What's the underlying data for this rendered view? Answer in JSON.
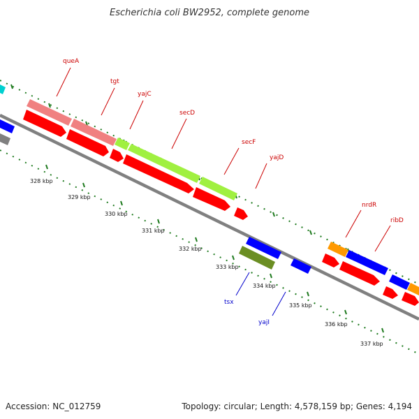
{
  "title": "Escherichia coli BW2952, complete genome",
  "footer": {
    "accession": "Accession: NC_012759",
    "summary": "Topology: circular; Length: 4,578,159 bp; Genes: 4,194"
  },
  "colors": {
    "background": "#ffffff",
    "backbone": "#808080",
    "tick": "#1e7a1e",
    "cds": "#ff0000",
    "plus_label": "#cc0000",
    "minus_label": "#0000cc",
    "queA": "#f08080",
    "tgt": "#f08080",
    "yajC": "#a0f040",
    "secD": "#a0f040",
    "secF": "#a0f040",
    "nrdR": "#ff9900",
    "ribD": "#0000ff",
    "tsx": "#6b8e23",
    "yajI": "#0000ff",
    "cyan_partial": "#00d0d0",
    "grey_partial": "#808080"
  },
  "kbp_labels": [
    "328 kbp",
    "329 kbp",
    "330 kbp",
    "331 kbp",
    "332 kbp",
    "333 kbp",
    "334 kbp",
    "335 kbp",
    "336 kbp",
    "337 kbp"
  ],
  "genes": {
    "queA": "queA",
    "tgt": "tgt",
    "yajC": "yajC",
    "secD": "secD",
    "secF": "secF",
    "yajD": "yajD",
    "nrdR": "nrdR",
    "ribD": "ribD",
    "tsx": "tsx",
    "yajI": "yajI"
  }
}
